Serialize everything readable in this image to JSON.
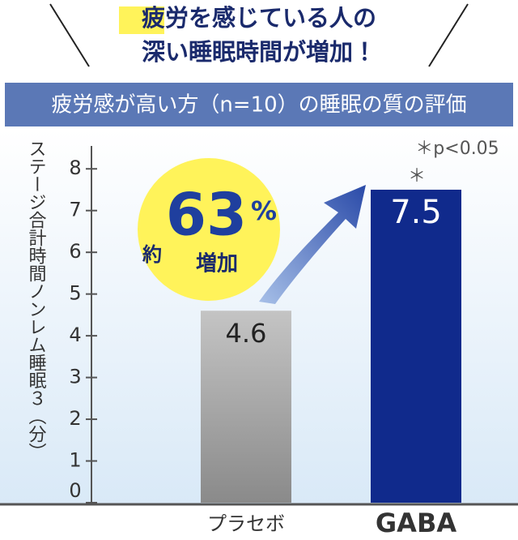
{
  "chart_data": {
    "type": "bar",
    "title_highlight": "疲労",
    "title_rest": "を感じている人の",
    "title_line2": "深い睡眠時間が増加！",
    "subtitle": "疲労感が高い方（n=10）の睡眠の質の評価",
    "y_label": "ステージ合計時間ノンレム睡眠３（分）",
    "categories": [
      "プラセボ",
      "GABA"
    ],
    "values": [
      4.6,
      7.5
    ],
    "colors": [
      "#a9a9a9",
      "#102a8c"
    ],
    "ylim": [
      0,
      8.5
    ],
    "yticks": [
      0,
      1,
      2,
      3,
      4,
      5,
      6,
      7,
      8
    ],
    "annotations": {
      "prefix": "約",
      "number": "63",
      "unit": "%",
      "suffix": "増加",
      "significance": "＊p<0.05",
      "star": "＊"
    }
  }
}
